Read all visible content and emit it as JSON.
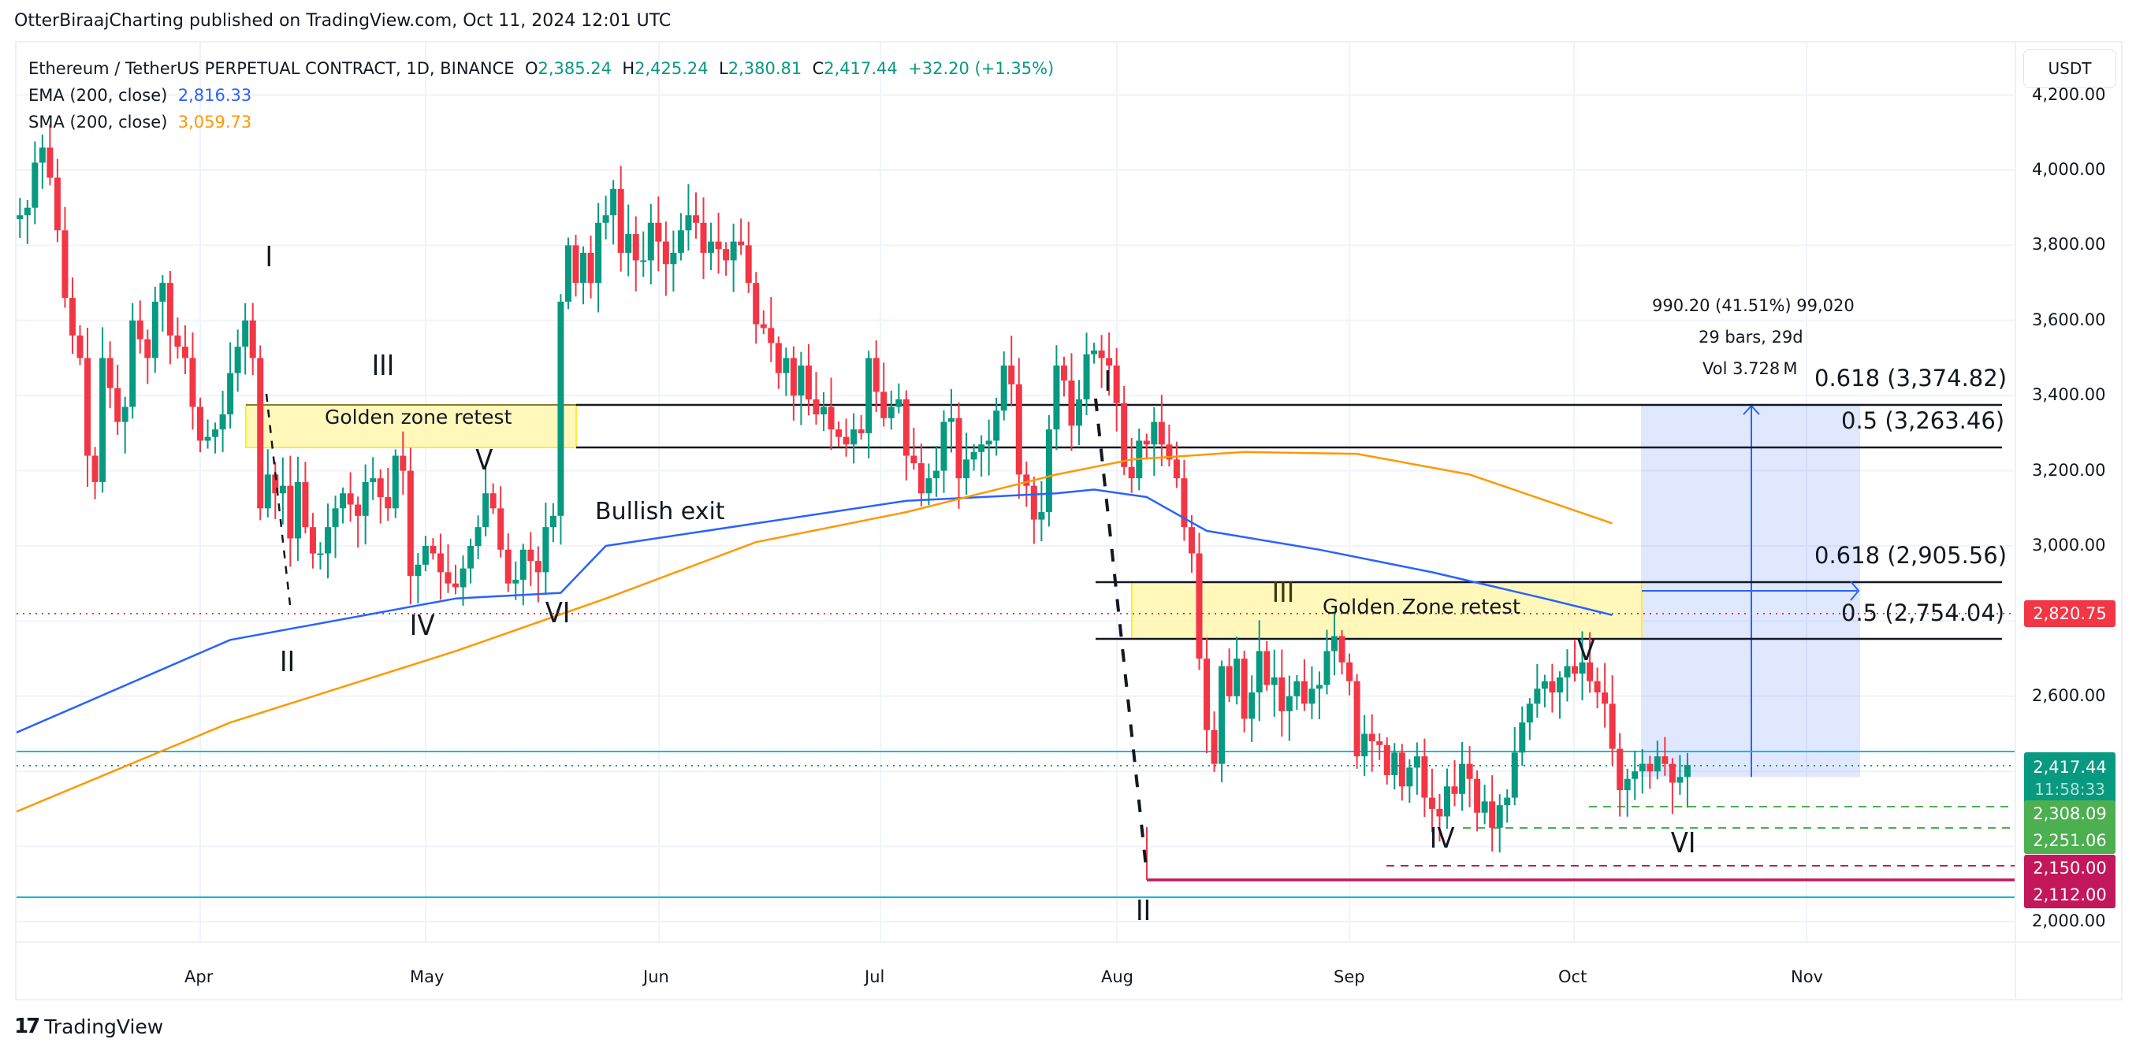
{
  "publisher_line": "OtterBiraajCharting published on TradingView.com, Oct 11, 2024 12:01 UTC",
  "legend": {
    "symbol": "Ethereum / TetherUS PERPETUAL CONTRACT, 1D, BINANCE",
    "open_label": "O",
    "open": "2,385.24",
    "high_label": "H",
    "high": "2,425.24",
    "low_label": "L",
    "low": "2,380.81",
    "close_label": "C",
    "close": "2,417.44",
    "change": "+32.20 (+1.35%)",
    "ema_label": "EMA (200, close)",
    "ema_value": "2,816.33",
    "sma_label": "SMA (200, close)",
    "sma_value": "3,059.73"
  },
  "currency_button": "USDT",
  "footer": {
    "logo_mark": "17",
    "logo_text": "TradingView"
  },
  "colors": {
    "up": "#089981",
    "down": "#f23645",
    "ema": "#2962ff",
    "sma": "#ff9800",
    "cyan": "#00bcd4",
    "golden_fill": "#fff59d",
    "golden_border": "#ffeb3b",
    "measure_fill": "#2962ff",
    "green_dash": "#4caf50",
    "crimson": "#c2185b",
    "grid": "#f0f3fa"
  },
  "annotations": {
    "golden_left": "Golden zone retest",
    "golden_right": "Golden Zone retest",
    "bullish_exit": "Bullish exit",
    "waves_left": [
      "I",
      "II",
      "III",
      "IV",
      "V",
      "VI"
    ],
    "waves_right": [
      "I",
      "II",
      "III",
      "IV",
      "V",
      "VI"
    ]
  },
  "fib_labels": {
    "upper_618": "0.618 (3,374.82)",
    "upper_5": "0.5 (3,263.46)",
    "lower_618": "0.618 (2,905.56)",
    "lower_5": "0.5 (2,754.04)"
  },
  "measure": {
    "line1": "990.20 (41.51%) 99,020",
    "line2": "29 bars, 29d",
    "line3": "Vol 3.728 M"
  },
  "price_tags": {
    "sma_tag": "2,820.75",
    "last_price": "2,417.44",
    "countdown": "11:58:33",
    "support_1": "2,308.09",
    "support_2": "2,251.06",
    "support_3": "2,150.00",
    "support_4": "2,112.00"
  },
  "chart_data": {
    "type": "candlestick",
    "title": "Ethereum / TetherUS PERPETUAL CONTRACT, 1D, BINANCE",
    "xlabel": "",
    "ylabel": "USDT",
    "x_ticks": [
      "Apr",
      "May",
      "Jun",
      "Jul",
      "Aug",
      "Sep",
      "Oct",
      "Nov"
    ],
    "y_ticks": [
      2000,
      2200,
      2400,
      2600,
      2800,
      3000,
      3200,
      3400,
      3600,
      3800,
      4000,
      4200
    ],
    "y_tick_labels": [
      "2,000.00",
      "2,200.00",
      "2,400.00",
      "2,600.00",
      "2,800.00",
      "3,000.00",
      "3,200.00",
      "3,400.00",
      "3,600.00",
      "3,800.00",
      "4,000.00",
      "4,200.00"
    ],
    "ylim": [
      1960,
      4240
    ],
    "grid": true,
    "start_date": "2024-03-06",
    "closes": [
      3840,
      3870,
      3880,
      3900,
      4020,
      4060,
      3980,
      3840,
      3660,
      3560,
      3500,
      3240,
      3170,
      3500,
      3420,
      3330,
      3370,
      3600,
      3550,
      3500,
      3650,
      3700,
      3560,
      3530,
      3500,
      3370,
      3280,
      3290,
      3310,
      3350,
      3460,
      3530,
      3600,
      3500,
      3100,
      3190,
      3140,
      3160,
      3020,
      3170,
      3050,
      2980,
      2980,
      3050,
      3100,
      3140,
      3110,
      3080,
      3170,
      3180,
      3130,
      3100,
      3240,
      3200,
      2920,
      2950,
      3000,
      2980,
      2930,
      2900,
      2890,
      2940,
      3000,
      3050,
      3140,
      3100,
      2990,
      2900,
      2910,
      2990,
      2960,
      2930,
      3050,
      3080,
      3650,
      3800,
      3700,
      3780,
      3700,
      3860,
      3880,
      3950,
      3780,
      3830,
      3760,
      3760,
      3860,
      3810,
      3750,
      3780,
      3840,
      3880,
      3860,
      3780,
      3810,
      3790,
      3760,
      3810,
      3800,
      3700,
      3590,
      3580,
      3540,
      3460,
      3500,
      3400,
      3480,
      3390,
      3350,
      3370,
      3310,
      3290,
      3270,
      3310,
      3300,
      3500,
      3410,
      3340,
      3370,
      3390,
      3240,
      3220,
      3140,
      3180,
      3200,
      3330,
      3340,
      3180,
      3230,
      3250,
      3270,
      3280,
      3360,
      3480,
      3430,
      3190,
      3160,
      3070,
      3090,
      3310,
      3480,
      3440,
      3320,
      3390,
      3510,
      3520,
      3500,
      3480,
      3380,
      3210,
      3180,
      3280,
      3270,
      3330,
      3270,
      3230,
      3180,
      3050,
      2980,
      2700,
      2510,
      2420,
      2680,
      2600,
      2700,
      2540,
      2610,
      2720,
      2630,
      2650,
      2560,
      2600,
      2640,
      2580,
      2620,
      2630,
      2720,
      2760,
      2690,
      2640,
      2440,
      2500,
      2480,
      2470,
      2390,
      2450,
      2360,
      2410,
      2440,
      2330,
      2300,
      2280,
      2360,
      2340,
      2420,
      2380,
      2290,
      2320,
      2250,
      2310,
      2330,
      2450,
      2530,
      2580,
      2620,
      2640,
      2610,
      2650,
      2680,
      2660,
      2690,
      2640,
      2610,
      2580,
      2460,
      2350,
      2380,
      2400,
      2420,
      2400,
      2440,
      2420,
      2370,
      2385,
      2417
    ],
    "series": [
      {
        "name": "EMA (200, close)",
        "color": "#2962ff",
        "last": 2816.33,
        "points": [
          [
            0,
            2490
          ],
          [
            30,
            2750
          ],
          [
            60,
            2860
          ],
          [
            74,
            2875
          ],
          [
            80,
            3000
          ],
          [
            100,
            3060
          ],
          [
            120,
            3120
          ],
          [
            140,
            3140
          ],
          [
            145,
            3150
          ],
          [
            152,
            3130
          ],
          [
            160,
            3040
          ],
          [
            175,
            2990
          ],
          [
            190,
            2930
          ],
          [
            205,
            2860
          ],
          [
            214,
            2816
          ]
        ]
      },
      {
        "name": "SMA (200, close)",
        "color": "#ff9800",
        "last": 3059.73,
        "points": [
          [
            0,
            2280
          ],
          [
            30,
            2530
          ],
          [
            60,
            2720
          ],
          [
            80,
            2860
          ],
          [
            100,
            3010
          ],
          [
            120,
            3090
          ],
          [
            140,
            3190
          ],
          [
            150,
            3230
          ],
          [
            165,
            3250
          ],
          [
            180,
            3245
          ],
          [
            195,
            3190
          ],
          [
            214,
            3060
          ]
        ]
      }
    ],
    "horizontal_levels": [
      {
        "price": 3374.82,
        "label": "0.618 (3,374.82)",
        "style": "solid-black"
      },
      {
        "price": 3263.46,
        "label": "0.5 (3,263.46)",
        "style": "solid-black"
      },
      {
        "price": 2905.56,
        "label": "0.618 (2,905.56)",
        "style": "solid-black"
      },
      {
        "price": 2754.04,
        "label": "0.5 (2,754.04)",
        "style": "solid-black"
      },
      {
        "price": 2820.75,
        "label": "2,820.75",
        "style": "dotted-red"
      },
      {
        "price": 2417.44,
        "label": "2,417.44",
        "style": "dotted-green"
      },
      {
        "price": 2440.0,
        "label": "",
        "style": "solid-cyan"
      },
      {
        "price": 2070.0,
        "label": "",
        "style": "solid-cyan"
      },
      {
        "price": 2308.09,
        "label": "2,308.09",
        "style": "dashed-green"
      },
      {
        "price": 2251.06,
        "label": "2,251.06",
        "style": "dashed-green"
      },
      {
        "price": 2150.0,
        "label": "2,150.00",
        "style": "dashed-crimson"
      },
      {
        "price": 2112.0,
        "label": "2,112.00",
        "style": "solid-crimson"
      }
    ],
    "measurement": {
      "from_price": 2385,
      "to_price": 3375,
      "change": 990.2,
      "percent": 41.51,
      "bars": 29,
      "days": 29,
      "volume": "3.728M"
    }
  }
}
